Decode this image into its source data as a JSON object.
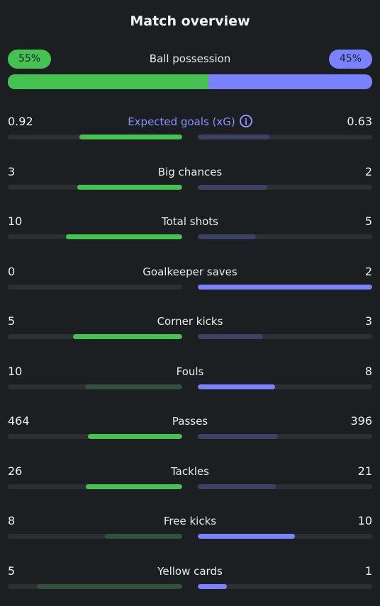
{
  "title": "Match overview",
  "possession": {
    "label": "Ball possession",
    "home": "55%",
    "away": "45%",
    "home_share": 0.55
  },
  "stats": [
    {
      "label": "Expected goals (xG)",
      "home": "0.92",
      "away": "0.63",
      "home_share": 0.59,
      "away_share": 0.41,
      "home_strong": true,
      "away_strong": false,
      "accent": true,
      "info": true
    },
    {
      "label": "Big chances",
      "home": "3",
      "away": "2",
      "home_share": 0.6,
      "away_share": 0.4,
      "home_strong": true,
      "away_strong": false
    },
    {
      "label": "Total shots",
      "home": "10",
      "away": "5",
      "home_share": 0.667,
      "away_share": 0.333,
      "home_strong": true,
      "away_strong": false
    },
    {
      "label": "Goalkeeper saves",
      "home": "0",
      "away": "2",
      "home_share": 0.0,
      "away_share": 1.0,
      "home_strong": false,
      "away_strong": true
    },
    {
      "label": "Corner kicks",
      "home": "5",
      "away": "3",
      "home_share": 0.625,
      "away_share": 0.375,
      "home_strong": true,
      "away_strong": false
    },
    {
      "label": "Fouls",
      "home": "10",
      "away": "8",
      "home_share": 0.556,
      "away_share": 0.444,
      "home_strong": false,
      "away_strong": true
    },
    {
      "label": "Passes",
      "home": "464",
      "away": "396",
      "home_share": 0.54,
      "away_share": 0.46,
      "home_strong": true,
      "away_strong": false
    },
    {
      "label": "Tackles",
      "home": "26",
      "away": "21",
      "home_share": 0.553,
      "away_share": 0.447,
      "home_strong": true,
      "away_strong": false
    },
    {
      "label": "Free kicks",
      "home": "8",
      "away": "10",
      "home_share": 0.444,
      "away_share": 0.556,
      "home_strong": false,
      "away_strong": true
    },
    {
      "label": "Yellow cards",
      "home": "5",
      "away": "1",
      "home_share": 0.833,
      "away_share": 0.167,
      "home_strong": false,
      "away_strong": true
    }
  ],
  "colors": {
    "home": "#46c253",
    "away": "#7b82ff",
    "background": "#1b1f22"
  }
}
